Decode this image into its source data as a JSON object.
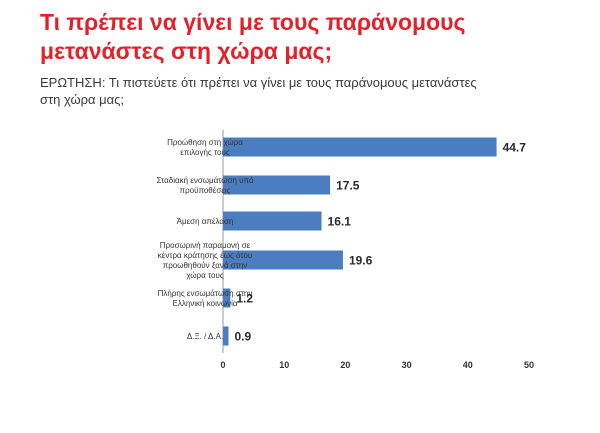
{
  "title": {
    "line1": "Τι πρέπει να γίνει με τους παράνομους",
    "line2": "μετανάστες στη χώρα μας;"
  },
  "question": {
    "line1": "ΕΡΩΤΗΣΗ: Τι πιστεύετε ότι πρέπει να γίνει με τους παράνομους μετανάστες",
    "line2": "στη χώρα μας;"
  },
  "colors": {
    "title": "#e4202b",
    "bar": "#4a7ec0",
    "text": "#333333"
  },
  "chart_data": {
    "type": "bar",
    "orientation": "horizontal",
    "categories": [
      [
        "Προώθηση στη χώρα",
        "επιλογής τους"
      ],
      [
        "Σταδιακή ενσωμάτωση υπό",
        "προϋποθέσεις"
      ],
      [
        "Άμεση απέλαση"
      ],
      [
        "Προσωρινή παραμονή σε",
        "κέντρα κράτησης έως ότου",
        "προωθηθούν ξανά στην",
        "χώρα τους"
      ],
      [
        "Πλήρης ενσωμάτωση στην",
        "Ελληνική κοινωνία"
      ],
      [
        "Δ.Ξ. / Δ.Α."
      ]
    ],
    "values": [
      44.7,
      17.5,
      16.1,
      19.6,
      1.2,
      0.9
    ],
    "value_labels": [
      "44.7",
      "17.5",
      "16.1",
      "19.6",
      "1.2",
      "0.9"
    ],
    "xlim": [
      0,
      50
    ],
    "xticks": [
      "0",
      "10",
      "20",
      "30",
      "40",
      "50"
    ],
    "grid": false,
    "legend": "none"
  }
}
